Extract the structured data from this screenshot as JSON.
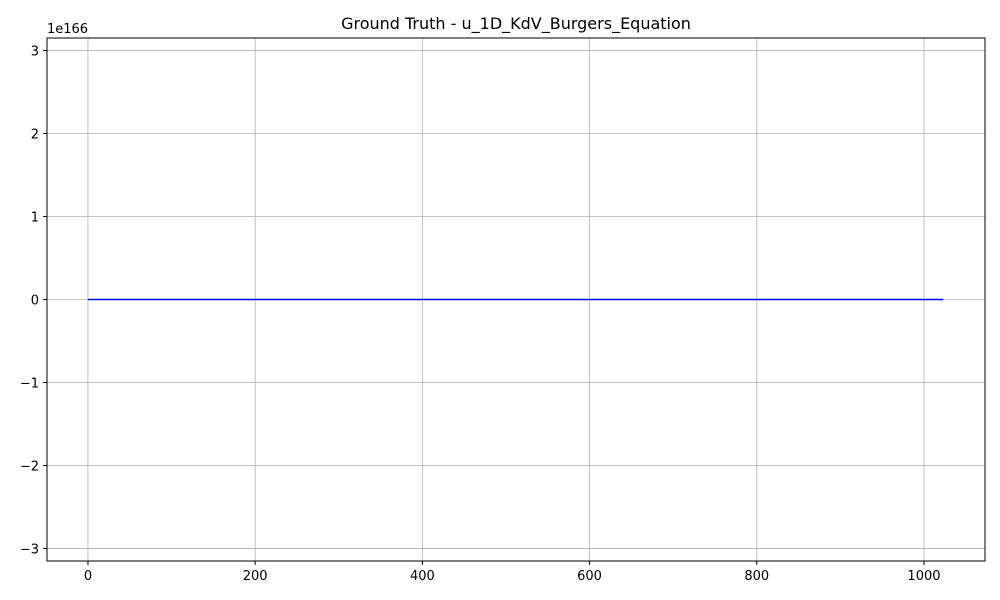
{
  "chart_data": {
    "type": "line",
    "title": "Ground Truth - u_1D_KdV_Burgers_Equation",
    "xlabel": "",
    "ylabel": "",
    "y_offset_label": "1e166",
    "y_scale": 1e+166,
    "xlim": [
      -49,
      1073
    ],
    "ylim": [
      -3.15,
      3.15
    ],
    "x_ticks": [
      0,
      200,
      400,
      600,
      800,
      1000
    ],
    "x_tick_labels": [
      "0",
      "200",
      "400",
      "600",
      "800",
      "1000"
    ],
    "y_ticks": [
      -3,
      -2,
      -1,
      0,
      1,
      2,
      3
    ],
    "y_tick_labels": [
      "−3",
      "−2",
      "−1",
      "0",
      "1",
      "2",
      "3"
    ],
    "grid": true,
    "series": [
      {
        "color": "#0000ff",
        "x": [
          0,
          1023
        ],
        "y": [
          0,
          0
        ]
      }
    ]
  }
}
